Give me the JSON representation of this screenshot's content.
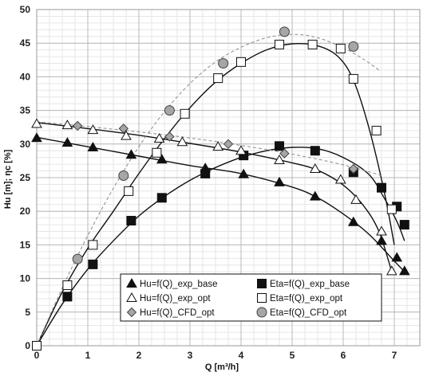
{
  "chart_data": {
    "type": "line",
    "xlabel": "Q [m³/h]",
    "ylabel": "Hu [m]; ηc [%]",
    "xlim": [
      0,
      7.5
    ],
    "ylim": [
      0,
      50
    ],
    "x_ticks": [
      0,
      1,
      2,
      3,
      4,
      5,
      6,
      7
    ],
    "y_ticks": [
      0,
      5,
      10,
      15,
      20,
      25,
      30,
      35,
      40,
      45,
      50
    ],
    "grid": true,
    "minor_grid": true,
    "legend_position": "bottom-center",
    "series": [
      {
        "name": "Hu=f(Q)_exp_base",
        "marker": "triangle-filled",
        "color": "#111111",
        "line": "solid",
        "points": [
          [
            0,
            30.9
          ],
          [
            0.6,
            30.2
          ],
          [
            1.1,
            29.5
          ],
          [
            1.85,
            28.4
          ],
          [
            2.45,
            27.7
          ],
          [
            3.3,
            26.4
          ],
          [
            4.05,
            25.5
          ],
          [
            4.75,
            24.3
          ],
          [
            5.45,
            22.2
          ],
          [
            6.2,
            18.4
          ],
          [
            6.75,
            15.6
          ],
          [
            7.05,
            13.1
          ],
          [
            7.2,
            11.1
          ]
        ],
        "curve": [
          [
            0,
            31.0
          ],
          [
            1,
            29.6
          ],
          [
            2,
            28.2
          ],
          [
            3,
            26.8
          ],
          [
            4,
            25.6
          ],
          [
            5,
            23.6
          ],
          [
            5.5,
            22.0
          ],
          [
            6,
            19.6
          ],
          [
            6.5,
            16.6
          ],
          [
            7,
            12.6
          ],
          [
            7.2,
            11.0
          ]
        ]
      },
      {
        "name": "Eta=f(Q)_exp_base",
        "marker": "square-filled",
        "color": "#111111",
        "line": "solid",
        "points": [
          [
            0,
            0
          ],
          [
            0.6,
            7.3
          ],
          [
            1.1,
            12.1
          ],
          [
            1.85,
            18.6
          ],
          [
            2.45,
            22.0
          ],
          [
            3.3,
            25.6
          ],
          [
            4.05,
            28.3
          ],
          [
            4.75,
            29.7
          ],
          [
            5.45,
            29.0
          ],
          [
            6.2,
            25.8
          ],
          [
            6.75,
            23.5
          ],
          [
            7.05,
            20.7
          ],
          [
            7.2,
            18.0
          ]
        ],
        "curve": [
          [
            0,
            0
          ],
          [
            0.5,
            6.2
          ],
          [
            1,
            11.4
          ],
          [
            1.5,
            15.6
          ],
          [
            2,
            19.3
          ],
          [
            2.5,
            22.2
          ],
          [
            3,
            24.6
          ],
          [
            3.5,
            26.5
          ],
          [
            4,
            28.0
          ],
          [
            4.5,
            29.0
          ],
          [
            5,
            29.5
          ],
          [
            5.5,
            29.3
          ],
          [
            6,
            28.0
          ],
          [
            6.5,
            25.5
          ],
          [
            6.8,
            22.0
          ],
          [
            7.05,
            18.5
          ],
          [
            7.2,
            15.6
          ]
        ]
      },
      {
        "name": "Hu=f(Q)_exp_opt",
        "marker": "triangle-open",
        "color": "#111111",
        "line": "solid",
        "points": [
          [
            0,
            33.0
          ],
          [
            0.6,
            32.8
          ],
          [
            1.1,
            32.1
          ],
          [
            1.75,
            31.2
          ],
          [
            2.4,
            30.8
          ],
          [
            2.85,
            30.3
          ],
          [
            3.55,
            29.6
          ],
          [
            4.0,
            29.0
          ],
          [
            4.75,
            27.6
          ],
          [
            5.45,
            26.3
          ],
          [
            5.95,
            24.7
          ],
          [
            6.25,
            21.7
          ],
          [
            6.75,
            17.0
          ],
          [
            6.95,
            11.1
          ]
        ],
        "curve": [
          [
            0,
            33.2
          ],
          [
            1,
            32.3
          ],
          [
            2,
            31.3
          ],
          [
            3,
            30.1
          ],
          [
            4,
            28.8
          ],
          [
            5,
            27.2
          ],
          [
            5.5,
            26.1
          ],
          [
            6,
            23.9
          ],
          [
            6.4,
            20.8
          ],
          [
            6.7,
            17.0
          ],
          [
            6.95,
            11.0
          ]
        ]
      },
      {
        "name": "Eta=f(Q)_exp_opt",
        "marker": "square-open",
        "color": "#111111",
        "line": "solid",
        "points": [
          [
            0,
            0
          ],
          [
            0.6,
            9.0
          ],
          [
            1.1,
            15.0
          ],
          [
            1.8,
            23.0
          ],
          [
            2.35,
            28.7
          ],
          [
            2.9,
            34.5
          ],
          [
            3.55,
            39.8
          ],
          [
            4.0,
            42.2
          ],
          [
            4.75,
            44.8
          ],
          [
            5.4,
            44.8
          ],
          [
            5.95,
            44.2
          ],
          [
            6.2,
            39.7
          ],
          [
            6.65,
            32.0
          ],
          [
            6.95,
            20.3
          ]
        ],
        "curve": [
          [
            0,
            0
          ],
          [
            0.5,
            8.0
          ],
          [
            1,
            14.5
          ],
          [
            1.5,
            20.0
          ],
          [
            2,
            25.6
          ],
          [
            2.5,
            30.8
          ],
          [
            3,
            35.4
          ],
          [
            3.5,
            39.2
          ],
          [
            4,
            42.0
          ],
          [
            4.5,
            44.0
          ],
          [
            5,
            44.9
          ],
          [
            5.5,
            44.6
          ],
          [
            5.9,
            43.0
          ],
          [
            6.2,
            39.5
          ],
          [
            6.5,
            32.5
          ],
          [
            6.8,
            23.0
          ],
          [
            7.0,
            15.0
          ]
        ]
      },
      {
        "name": "Hu=f(Q)_CFD_opt",
        "marker": "diamond-gray",
        "color": "#999999",
        "line": "dashed",
        "points": [
          [
            0.8,
            32.7
          ],
          [
            1.7,
            32.3
          ],
          [
            2.6,
            31.1
          ],
          [
            3.75,
            30.0
          ],
          [
            4.85,
            28.6
          ],
          [
            6.2,
            26.3
          ]
        ],
        "curve": [
          [
            0,
            33.3
          ],
          [
            1,
            32.6
          ],
          [
            2,
            31.8
          ],
          [
            3,
            30.9
          ],
          [
            4,
            29.8
          ],
          [
            5,
            28.5
          ],
          [
            6,
            26.9
          ],
          [
            6.8,
            25.2
          ]
        ]
      },
      {
        "name": "Eta=f(Q)_CFD_opt",
        "marker": "circle-gray",
        "color": "#999999",
        "line": "dashed",
        "points": [
          [
            0.8,
            12.9
          ],
          [
            1.7,
            25.3
          ],
          [
            2.6,
            35.0
          ],
          [
            3.65,
            42.0
          ],
          [
            4.85,
            46.7
          ],
          [
            6.2,
            44.5
          ]
        ],
        "curve": [
          [
            0,
            0
          ],
          [
            0.5,
            8.6
          ],
          [
            1,
            16.4
          ],
          [
            1.5,
            23.4
          ],
          [
            2,
            29.6
          ],
          [
            2.5,
            34.8
          ],
          [
            3,
            39.0
          ],
          [
            3.5,
            42.2
          ],
          [
            4,
            44.4
          ],
          [
            4.5,
            45.8
          ],
          [
            5,
            46.3
          ],
          [
            5.5,
            45.8
          ],
          [
            6,
            44.3
          ],
          [
            6.4,
            42.6
          ],
          [
            6.7,
            41.0
          ]
        ]
      }
    ]
  }
}
